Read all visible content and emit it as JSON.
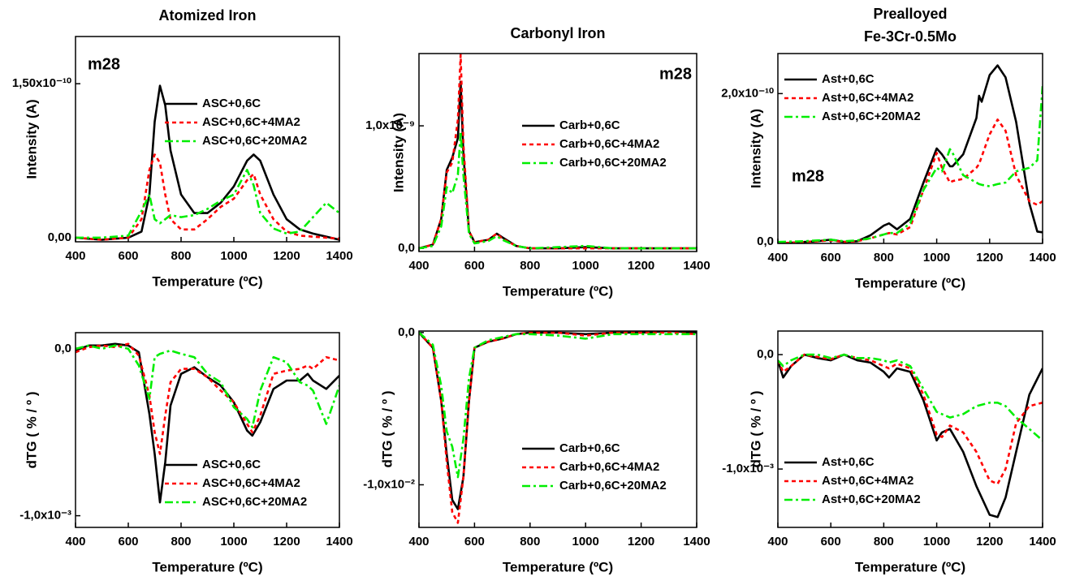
{
  "chart_data": [
    {
      "type": "line",
      "title": "Atomized Iron",
      "x_label": "Temperature (ºC)",
      "y_label": "Intensity (A)",
      "annotation": "m28",
      "legend": "upper right",
      "x": [
        400,
        500,
        600,
        650,
        680,
        700,
        720,
        740,
        760,
        800,
        850,
        900,
        950,
        1000,
        1050,
        1075,
        1100,
        1150,
        1200,
        1250,
        1300,
        1350,
        1400
      ],
      "xlim": [
        400,
        1400
      ],
      "xticks": [
        400,
        600,
        800,
        1000,
        1200,
        1400
      ],
      "ylim": [
        -4e-12,
        1.96e-10
      ],
      "yticks": [
        {
          "value": 0,
          "label": "0,00"
        },
        {
          "value": 1.5e-10,
          "label": "1,50x10⁻¹⁰"
        }
      ],
      "series": [
        {
          "name": "ASC+0,6C",
          "color": "#000000",
          "style": "solid",
          "values": [
            0,
            -2e-12,
            0,
            6e-12,
            4.2e-11,
            1.13e-10,
            1.48e-10,
            1.29e-10,
            8.5e-11,
            4.2e-11,
            2.4e-11,
            2.4e-11,
            3.4e-11,
            5e-11,
            7.5e-11,
            8.1e-11,
            7.5e-11,
            4.2e-11,
            1.8e-11,
            8e-12,
            4e-12,
            1e-12,
            -2e-12
          ]
        },
        {
          "name": "ASC+0,6C+4MA2",
          "color": "#ff0000",
          "style": "dashed",
          "values": [
            0,
            -2e-12,
            0,
            1.8e-11,
            6.6e-11,
            8.1e-11,
            7.3e-11,
            4.2e-11,
            1.8e-11,
            8e-12,
            8e-12,
            1.8e-11,
            3e-11,
            3.8e-11,
            5.6e-11,
            6.2e-11,
            4.2e-11,
            1.8e-11,
            6e-12,
            2e-12,
            1e-12,
            0,
            -1e-12
          ]
        },
        {
          "name": "ASC+0,6C+20MA2",
          "color": "#00ee00",
          "style": "dashdot",
          "values": [
            0,
            0,
            2e-12,
            2.6e-11,
            4.2e-11,
            1.8e-11,
            1.4e-11,
            1.8e-11,
            2.2e-11,
            2e-11,
            2.2e-11,
            2.8e-11,
            3.6e-11,
            4.2e-11,
            6.6e-11,
            5.1e-11,
            2.4e-11,
            9e-12,
            4e-12,
            6e-12,
            2e-11,
            3.4e-11,
            2.4e-11
          ]
        }
      ]
    },
    {
      "type": "line",
      "title": "Carbonyl Iron",
      "x_label": "Temperature (ºC)",
      "y_label": "Intensity (A)",
      "annotation": "m28",
      "legend": "upper right",
      "x": [
        400,
        450,
        480,
        500,
        520,
        540,
        550,
        560,
        580,
        600,
        650,
        680,
        700,
        750,
        800,
        900,
        1000,
        1100,
        1200,
        1300,
        1400
      ],
      "xlim": [
        400,
        1400
      ],
      "xticks": [
        400,
        600,
        800,
        1000,
        1200,
        1400
      ],
      "ylim": [
        -2.6e-11,
        1.59e-09
      ],
      "yticks": [
        {
          "value": 0,
          "label": "0,0"
        },
        {
          "value": 1e-09,
          "label": "1,0x10⁻⁹"
        }
      ],
      "series": [
        {
          "name": "Carb+0,6C",
          "color": "#000000",
          "style": "solid",
          "values": [
            0,
            3e-11,
            2.4e-10,
            6.4e-10,
            7.4e-10,
            9e-10,
            1.36e-09,
            7.7e-10,
            1.4e-10,
            5e-11,
            7e-11,
            1.2e-10,
            9e-11,
            2e-11,
            0,
            0,
            1e-11,
            0,
            0,
            0,
            0
          ]
        },
        {
          "name": "Carb+0,6C+4MA2",
          "color": "#ff0000",
          "style": "dashed",
          "values": [
            0,
            3e-11,
            2.4e-10,
            6.2e-10,
            7e-10,
            1.05e-09,
            1.58e-09,
            8.5e-10,
            1.4e-10,
            5e-11,
            7e-11,
            1.2e-10,
            8e-11,
            2e-11,
            0,
            0,
            0,
            0,
            0,
            0,
            0
          ]
        },
        {
          "name": "Carb+0,6C+20MA2",
          "color": "#00ee00",
          "style": "dashdot",
          "values": [
            0,
            2e-11,
            1.8e-10,
            5e-10,
            4.5e-10,
            6e-10,
            9.5e-10,
            6e-10,
            1.2e-10,
            4e-11,
            6e-11,
            1e-10,
            7e-11,
            2e-11,
            0,
            1e-11,
            2e-11,
            0,
            0,
            0,
            0
          ]
        }
      ]
    },
    {
      "type": "line",
      "title": "Prealloyed",
      "subtitle": "Fe-3Cr-0.5Mo",
      "x_label": "Temperature (ºC)",
      "y_label": "Intensity (A)",
      "annotation": "m28",
      "legend": "upper left",
      "x": [
        400,
        500,
        550,
        600,
        650,
        700,
        750,
        800,
        820,
        850,
        900,
        950,
        1000,
        1020,
        1050,
        1060,
        1100,
        1150,
        1160,
        1170,
        1200,
        1230,
        1260,
        1300,
        1350,
        1380,
        1400
      ],
      "xlim": [
        400,
        1400
      ],
      "xticks": [
        400,
        600,
        800,
        1000,
        1200,
        1400
      ],
      "ylim": [
        -2e-12,
        2.54e-10
      ],
      "yticks": [
        {
          "value": 0,
          "label": "0,0"
        },
        {
          "value": 2e-10,
          "label": "2,0x10⁻¹⁰"
        }
      ],
      "series": [
        {
          "name": "Ast+0,6C",
          "color": "#000000",
          "style": "solid",
          "values": [
            -2e-12,
            0,
            1e-12,
            3e-12,
            0,
            1e-12,
            9e-12,
            2.2e-11,
            2.5e-11,
            1.7e-11,
            3.1e-11,
            8e-11,
            1.26e-10,
            1.18e-10,
            1.02e-10,
            1.02e-10,
            1.18e-10,
            1.67e-10,
            1.97e-10,
            1.89e-10,
            2.25e-10,
            2.38e-10,
            2.22e-10,
            1.62e-10,
            5.2e-11,
            1.4e-11,
            1.3e-11
          ]
        },
        {
          "name": "Ast+0,6C+4MA2",
          "color": "#ff0000",
          "style": "dashed",
          "values": [
            -2e-12,
            0,
            1e-12,
            2e-12,
            0,
            1e-12,
            5e-12,
            1e-11,
            1.2e-11,
            1e-11,
            2e-11,
            7e-11,
            1.2e-10,
            1e-10,
            8e-11,
            8.2e-11,
            8.5e-11,
            1e-10,
            1.05e-10,
            1.15e-10,
            1.45e-10,
            1.65e-10,
            1.5e-10,
            9e-11,
            5.5e-11,
            5e-11,
            5.5e-11
          ]
        },
        {
          "name": "Ast+0,6C+20MA2",
          "color": "#00ee00",
          "style": "dashdot",
          "values": [
            0,
            1e-12,
            2e-12,
            3e-12,
            1e-12,
            2e-12,
            5e-12,
            1e-11,
            1.2e-11,
            1.2e-11,
            2.5e-11,
            7e-11,
            1e-10,
            9.5e-11,
            1.25e-10,
            1.2e-10,
            9e-11,
            8e-11,
            7.8e-11,
            7.7e-11,
            7.5e-11,
            7.8e-11,
            8e-11,
            9.5e-11,
            1e-10,
            1.1e-10,
            2.1e-10
          ]
        }
      ]
    },
    {
      "type": "line",
      "x_label": "Temperature (ºC)",
      "y_label": "dTG ( % / º )",
      "legend": "lower right",
      "x": [
        400,
        450,
        500,
        550,
        600,
        640,
        680,
        700,
        720,
        740,
        760,
        800,
        850,
        900,
        950,
        1000,
        1050,
        1070,
        1100,
        1150,
        1200,
        1250,
        1280,
        1300,
        1350,
        1400
      ],
      "xlim": [
        400,
        1400
      ],
      "xticks": [
        400,
        600,
        800,
        1000,
        1200,
        1400
      ],
      "ylim": [
        -0.00107,
        9.7e-05
      ],
      "yticks": [
        {
          "value": -0.001,
          "label": "-1,0x10⁻³"
        },
        {
          "value": 0,
          "label": "0,0"
        }
      ],
      "series": [
        {
          "name": "ASC+0,6C",
          "color": "#000000",
          "style": "solid",
          "values": [
            -1e-05,
            2e-05,
            2e-05,
            3e-05,
            2e-05,
            -2e-05,
            -0.00039,
            -0.00063,
            -0.00092,
            -0.00068,
            -0.00034,
            -0.00015,
            -0.00011,
            -0.00017,
            -0.00022,
            -0.00032,
            -0.00049,
            -0.00052,
            -0.00044,
            -0.00024,
            -0.00019,
            -0.00019,
            -0.00015,
            -0.00019,
            -0.00024,
            -0.00016
          ]
        },
        {
          "name": "ASC+0,6C+4MA2",
          "color": "#ff0000",
          "style": "dashed",
          "values": [
            -2e-05,
            1e-05,
            2e-05,
            1e-05,
            3e-05,
            -4e-05,
            -0.00028,
            -0.0005,
            -0.00063,
            -0.0004,
            -0.0002,
            -0.00012,
            -0.00012,
            -0.00017,
            -0.00025,
            -0.00032,
            -0.00045,
            -0.0005,
            -0.0004,
            -0.00015,
            -0.00013,
            -0.00012,
            -0.0001,
            -0.00012,
            -5e-05,
            -7e-05
          ]
        },
        {
          "name": "ASC+0,6C+20MA2",
          "color": "#00ee00",
          "style": "dashdot",
          "values": [
            0,
            2e-05,
            0,
            2e-05,
            0,
            -0.0001,
            -0.0003,
            -5e-05,
            -3e-05,
            -2e-05,
            -1e-05,
            -3e-05,
            -5e-05,
            -0.00015,
            -0.0002,
            -0.00035,
            -0.00042,
            -0.00047,
            -0.00025,
            -5e-05,
            -8e-05,
            -0.0002,
            -0.00022,
            -0.00025,
            -0.00045,
            -0.00022
          ]
        }
      ]
    },
    {
      "type": "line",
      "x_label": "Temperature (ºC)",
      "y_label": "dTG ( % / º )",
      "legend": "lower right",
      "x": [
        400,
        450,
        480,
        500,
        520,
        540,
        560,
        580,
        600,
        650,
        700,
        750,
        800,
        900,
        1000,
        1100,
        1200,
        1300,
        1400
      ],
      "xlim": [
        400,
        1400
      ],
      "xticks": [
        400,
        600,
        800,
        1000,
        1200,
        1400
      ],
      "ylim": [
        -0.0128,
        0.0001
      ],
      "yticks": [
        {
          "value": -0.01,
          "label": "-1,0x10⁻²"
        },
        {
          "value": 0,
          "label": "0,0"
        }
      ],
      "series": [
        {
          "name": "Carb+0,6C",
          "color": "#000000",
          "style": "solid",
          "values": [
            0,
            -0.001,
            -0.0045,
            -0.008,
            -0.011,
            -0.0116,
            -0.0095,
            -0.0045,
            -0.001,
            -0.0006,
            -0.0004,
            -0.0001,
            0,
            0,
            -0.0001,
            0,
            0,
            0.0001,
            0
          ]
        },
        {
          "name": "Carb+0,6C+4MA2",
          "color": "#ff0000",
          "style": "dashed",
          "values": [
            0,
            -0.001,
            -0.0045,
            -0.0085,
            -0.0118,
            -0.0125,
            -0.0095,
            -0.0045,
            -0.001,
            -0.0006,
            -0.0004,
            -0.0001,
            0,
            0,
            -0.0002,
            0,
            0,
            0,
            -0.0001
          ]
        },
        {
          "name": "Carb+0,6C+20MA2",
          "color": "#00ee00",
          "style": "dashdot",
          "values": [
            0,
            -0.0008,
            -0.0035,
            -0.0065,
            -0.0075,
            -0.0095,
            -0.007,
            -0.003,
            -0.001,
            -0.0005,
            -0.0003,
            -0.0001,
            -0.0001,
            -0.0002,
            -0.0004,
            -0.0001,
            -0.0001,
            -0.0001,
            -0.0001
          ]
        }
      ]
    },
    {
      "type": "line",
      "x_label": "Temperature (ºC)",
      "y_label": "dTG ( % / º )",
      "legend": "lower left",
      "x": [
        400,
        420,
        450,
        500,
        550,
        600,
        650,
        700,
        750,
        800,
        820,
        850,
        900,
        950,
        1000,
        1020,
        1050,
        1100,
        1150,
        1200,
        1230,
        1260,
        1300,
        1350,
        1400
      ],
      "xlim": [
        400,
        1400
      ],
      "xticks": [
        400,
        600,
        800,
        1000,
        1200,
        1400
      ],
      "ylim": [
        -0.00151,
        0.000206
      ],
      "yticks": [
        {
          "value": -0.001,
          "label": "-1,0x10⁻³"
        },
        {
          "value": 0,
          "label": "0,0"
        }
      ],
      "series": [
        {
          "name": "Ast+0,6C",
          "color": "#000000",
          "style": "solid",
          "values": [
            -5e-05,
            -0.0002,
            -0.0001,
            0,
            -3e-05,
            -5e-05,
            0,
            -5e-05,
            -7e-05,
            -0.00015,
            -0.0002,
            -0.00012,
            -0.00015,
            -0.0004,
            -0.00075,
            -0.00068,
            -0.00065,
            -0.00085,
            -0.00115,
            -0.0014,
            -0.00142,
            -0.00125,
            -0.00085,
            -0.00035,
            -0.00012
          ]
        },
        {
          "name": "Ast+0,6C+4MA2",
          "color": "#ff0000",
          "style": "dashed",
          "values": [
            -5e-05,
            -0.00015,
            -0.0001,
            0,
            -2e-05,
            -4e-05,
            0,
            -3e-05,
            -5e-05,
            -0.0001,
            -0.00012,
            -8e-05,
            -0.00012,
            -0.00035,
            -0.0007,
            -0.00072,
            -0.00062,
            -0.00068,
            -0.00085,
            -0.0011,
            -0.00113,
            -0.001,
            -0.0006,
            -0.00045,
            -0.00042
          ]
        },
        {
          "name": "Ast+0,6C+20MA2",
          "color": "#00ee00",
          "style": "dashdot",
          "values": [
            -5e-05,
            -0.0001,
            -5e-05,
            0,
            0,
            -3e-05,
            0,
            -3e-05,
            -3e-05,
            -5e-05,
            -7e-05,
            -5e-05,
            -0.0001,
            -0.0003,
            -0.0005,
            -0.00052,
            -0.00055,
            -0.00052,
            -0.00045,
            -0.00042,
            -0.00042,
            -0.00045,
            -0.00055,
            -0.00065,
            -0.00075
          ]
        }
      ]
    }
  ]
}
